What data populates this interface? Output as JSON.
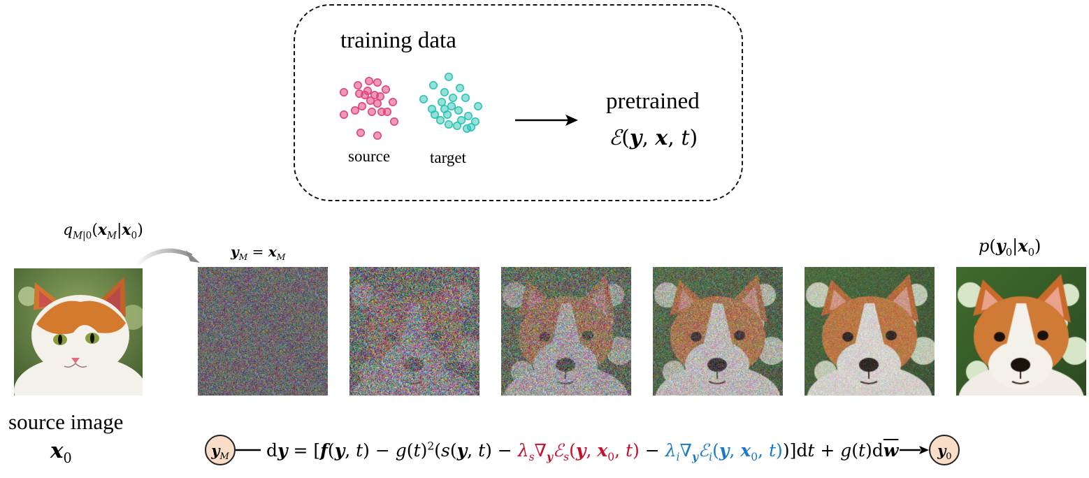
{
  "training_box": {
    "title": "training data",
    "source_label": "source",
    "target_label": "target",
    "pretrained_label": "pretrained",
    "energy_label": "ℰ(y, x, t)",
    "source_color": "#e0457b",
    "target_color": "#2bc4b4"
  },
  "forward_process": {
    "label": "q_{M|0}(x_M|x_0)"
  },
  "source_image": {
    "caption": "source image",
    "symbol": "x_0"
  },
  "noisy_start": {
    "label": "y_M = x_M"
  },
  "output": {
    "label": "p(y_0|x_0)"
  },
  "sequence": {
    "images": [
      {
        "name": "step-1-pure-noise",
        "noise": 1.0
      },
      {
        "name": "step-2",
        "noise": 0.85
      },
      {
        "name": "step-3",
        "noise": 0.65
      },
      {
        "name": "step-4",
        "noise": 0.45
      },
      {
        "name": "step-5",
        "noise": 0.25
      },
      {
        "name": "step-6-clean-dog",
        "noise": 0.0
      }
    ]
  },
  "sde": {
    "start_node": "y_M",
    "end_node": "y_0",
    "equation": "dy = [f(y,t) − g(t)^2(s(y,t) − λ_s ∇_y ℰ_s(y, x_0, t) − λ_i ∇_y ℰ_i(y, x_0, t))]dt + g(t)dw̄",
    "source_term_color": "#c8102e",
    "independent_term_color": "#1b7ac7"
  }
}
